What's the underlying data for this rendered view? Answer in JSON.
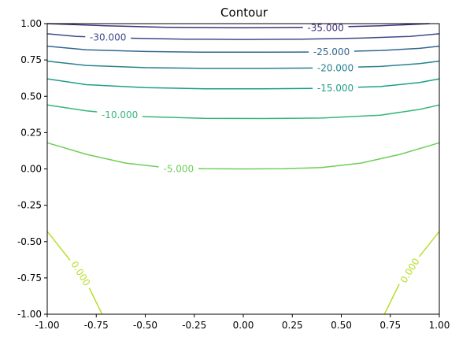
{
  "chart_data": {
    "type": "contour",
    "title": "Contour",
    "xlabel": "",
    "ylabel": "",
    "xlim": [
      -1,
      1
    ],
    "ylim": [
      -1,
      1
    ],
    "grid": false,
    "legend": "none",
    "x_ticks": [
      "-1.00",
      "-0.75",
      "-0.50",
      "-0.25",
      "0.00",
      "0.25",
      "0.50",
      "0.75",
      "1.00"
    ],
    "y_ticks": [
      "-1.00",
      "-0.75",
      "-0.50",
      "-0.25",
      "0.00",
      "0.25",
      "0.50",
      "0.75",
      "1.00"
    ],
    "levels": [
      {
        "value": -35,
        "label": "-35.000",
        "color": "#46327e",
        "label_at": [
          0.42,
          0.97
        ],
        "segments": [
          [
            [
              -1,
              1.0
            ],
            [
              -0.7,
              0.985
            ],
            [
              -0.4,
              0.975
            ],
            [
              0,
              0.972
            ],
            [
              0.4,
              0.975
            ],
            [
              0.7,
              0.985
            ],
            [
              0.95,
              1.0
            ]
          ]
        ]
      },
      {
        "value": -30,
        "label": "-30.000",
        "color": "#3e4a89",
        "label_at": [
          -0.69,
          0.905
        ],
        "segments": [
          [
            [
              -1,
              0.93
            ],
            [
              -0.85,
              0.912
            ],
            [
              -0.6,
              0.9
            ],
            [
              -0.3,
              0.893
            ],
            [
              0,
              0.891
            ],
            [
              0.3,
              0.893
            ],
            [
              0.6,
              0.9
            ],
            [
              0.85,
              0.912
            ],
            [
              1,
              0.93
            ]
          ]
        ]
      },
      {
        "value": -25,
        "label": "-25.000",
        "color": "#31678d",
        "label_at": [
          0.45,
          0.805
        ],
        "segments": [
          [
            [
              -1,
              0.845
            ],
            [
              -0.8,
              0.82
            ],
            [
              -0.5,
              0.808
            ],
            [
              -0.2,
              0.803
            ],
            [
              0.1,
              0.803
            ],
            [
              0.4,
              0.805
            ],
            [
              0.7,
              0.815
            ],
            [
              0.9,
              0.83
            ],
            [
              1,
              0.845
            ]
          ]
        ]
      },
      {
        "value": -20,
        "label": "-20.000",
        "color": "#26828e",
        "label_at": [
          0.47,
          0.695
        ],
        "segments": [
          [
            [
              -1,
              0.742
            ],
            [
              -0.8,
              0.712
            ],
            [
              -0.5,
              0.697
            ],
            [
              -0.2,
              0.692
            ],
            [
              0.1,
              0.692
            ],
            [
              0.4,
              0.695
            ],
            [
              0.7,
              0.705
            ],
            [
              0.9,
              0.725
            ],
            [
              1,
              0.742
            ]
          ]
        ]
      },
      {
        "value": -15,
        "label": "-15.000",
        "color": "#1f9e89",
        "label_at": [
          0.47,
          0.555
        ],
        "segments": [
          [
            [
              -1,
              0.62
            ],
            [
              -0.8,
              0.58
            ],
            [
              -0.5,
              0.56
            ],
            [
              -0.2,
              0.552
            ],
            [
              0.1,
              0.551
            ],
            [
              0.4,
              0.555
            ],
            [
              0.7,
              0.567
            ],
            [
              0.9,
              0.595
            ],
            [
              1,
              0.62
            ]
          ]
        ]
      },
      {
        "value": -10,
        "label": "-10.000",
        "color": "#35b779",
        "label_at": [
          -0.63,
          0.37
        ],
        "segments": [
          [
            [
              -1,
              0.44
            ],
            [
              -0.8,
              0.4
            ],
            [
              -0.5,
              0.36
            ],
            [
              -0.2,
              0.348
            ],
            [
              0.1,
              0.347
            ],
            [
              0.4,
              0.35
            ],
            [
              0.7,
              0.37
            ],
            [
              0.9,
              0.41
            ],
            [
              1,
              0.44
            ]
          ]
        ]
      },
      {
        "value": -5,
        "label": "-5.000",
        "color": "#6ece58",
        "label_at": [
          -0.33,
          0.0
        ],
        "segments": [
          [
            [
              -1,
              0.18
            ],
            [
              -0.8,
              0.1
            ],
            [
              -0.6,
              0.04
            ],
            [
              -0.4,
              0.01
            ],
            [
              -0.2,
              0.001
            ],
            [
              0,
              0.0
            ],
            [
              0.2,
              0.001
            ],
            [
              0.4,
              0.01
            ],
            [
              0.6,
              0.04
            ],
            [
              0.8,
              0.1
            ],
            [
              1,
              0.18
            ]
          ]
        ]
      },
      {
        "value": 0,
        "label": "0.000",
        "color": "#b5de2b",
        "label_at": [
          -0.83,
          -0.72
        ],
        "label_at_2": [
          0.85,
          -0.7
        ],
        "segments": [
          [
            [
              -1,
              -0.43
            ],
            [
              -0.9,
              -0.6
            ],
            [
              -0.8,
              -0.78
            ],
            [
              -0.72,
              -1
            ]
          ],
          [
            [
              1,
              -0.43
            ],
            [
              0.9,
              -0.6
            ],
            [
              0.8,
              -0.78
            ],
            [
              0.72,
              -1
            ]
          ]
        ]
      }
    ]
  }
}
